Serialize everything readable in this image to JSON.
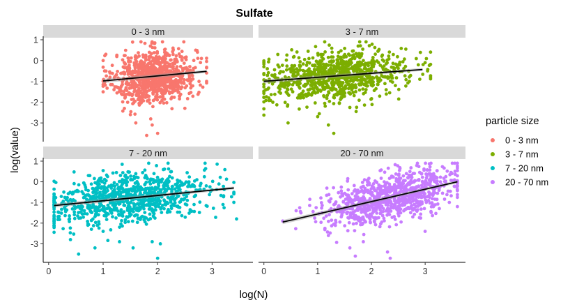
{
  "chart_data": {
    "type": "scatter",
    "title": "Sulfate",
    "xlabel": "log(N)",
    "ylabel": "log(value)",
    "xlim": [
      -0.1,
      3.75
    ],
    "ylim": [
      -3.9,
      1.1
    ],
    "x_ticks": [
      0,
      1,
      2,
      3
    ],
    "y_ticks": [
      -3,
      -2,
      -1,
      0,
      1
    ],
    "x_tick_labels": [
      "0",
      "1",
      "2",
      "3"
    ],
    "y_tick_labels": [
      "-3",
      "-2",
      "-1",
      "0",
      "1"
    ],
    "grid": false,
    "legend": {
      "title": "particle size",
      "placement": "right"
    },
    "panels": [
      {
        "name": "0 - 3 nm",
        "color": "#F8766D",
        "fit": {
          "x": [
            1.0,
            2.9
          ],
          "y": [
            -0.98,
            -0.52
          ]
        },
        "cloud": {
          "n": 900,
          "x_center": 1.95,
          "x_spread": 0.38,
          "y_intercept": -1.22,
          "slope": 0.24,
          "y_spread": 0.62,
          "x_range": [
            1.0,
            2.9
          ]
        },
        "sample_points": [
          [
            1.05,
            0.3
          ],
          [
            1.2,
            -1.4
          ],
          [
            1.4,
            -1.8
          ],
          [
            1.5,
            -2.6
          ],
          [
            1.6,
            -3.0
          ],
          [
            1.8,
            -3.6
          ],
          [
            1.9,
            -3.1
          ],
          [
            2.0,
            -3.5
          ],
          [
            2.5,
            -2.3
          ],
          [
            2.7,
            0.5
          ],
          [
            2.9,
            -1.0
          ]
        ]
      },
      {
        "name": "3 - 7 nm",
        "color": "#7CAE00",
        "fit": {
          "x": [
            0.0,
            2.95
          ],
          "y": [
            -1.0,
            -0.43
          ]
        },
        "cloud": {
          "n": 900,
          "x_center": 1.35,
          "x_spread": 0.65,
          "y_intercept": -1.0,
          "slope": 0.19,
          "y_spread": 0.58,
          "x_range": [
            0.0,
            3.1
          ]
        },
        "sample_points": [
          [
            0.0,
            -0.3
          ],
          [
            0.1,
            -0.9
          ],
          [
            0.45,
            -3.0
          ],
          [
            1.0,
            -2.7
          ],
          [
            1.3,
            -3.5
          ],
          [
            1.2,
            -3.1
          ],
          [
            1.9,
            -1.4
          ],
          [
            3.0,
            -0.1
          ],
          [
            2.9,
            -0.9
          ]
        ]
      },
      {
        "name": "7 - 20 nm",
        "color": "#00BFC4",
        "fit": {
          "x": [
            0.1,
            3.4
          ],
          "y": [
            -1.15,
            -0.3
          ]
        },
        "cloud": {
          "n": 900,
          "x_center": 1.45,
          "x_spread": 0.75,
          "y_intercept": -1.18,
          "slope": 0.26,
          "y_spread": 0.6,
          "x_range": [
            0.1,
            3.4
          ]
        },
        "sample_points": [
          [
            0.1,
            -1.0
          ],
          [
            0.4,
            -2.8
          ],
          [
            0.55,
            -3.5
          ],
          [
            0.85,
            -3.2
          ],
          [
            1.0,
            -2.4
          ],
          [
            1.3,
            -2.9
          ],
          [
            1.55,
            -3.2
          ],
          [
            1.9,
            -2.9
          ],
          [
            2.05,
            -3.0
          ],
          [
            2.0,
            -3.7
          ],
          [
            3.45,
            -1.8
          ],
          [
            3.2,
            -1.1
          ]
        ]
      },
      {
        "name": "20 - 70 nm",
        "color": "#C77CFF",
        "fit": {
          "x": [
            0.35,
            3.6
          ],
          "y": [
            -1.95,
            0.0
          ]
        },
        "cloud": {
          "n": 900,
          "x_center": 2.35,
          "x_spread": 0.6,
          "y_intercept": -2.1,
          "slope": 0.58,
          "y_spread": 0.55,
          "x_range": [
            0.35,
            3.6
          ]
        },
        "sample_points": [
          [
            0.35,
            -1.9
          ],
          [
            0.6,
            -1.4
          ],
          [
            1.2,
            -2.6
          ],
          [
            1.6,
            -3.2
          ],
          [
            1.7,
            -3.6
          ],
          [
            1.85,
            -2.9
          ],
          [
            2.3,
            -3.4
          ],
          [
            2.35,
            -3.7
          ],
          [
            3.0,
            -2.4
          ],
          [
            3.5,
            0.4
          ],
          [
            3.6,
            0.05
          ]
        ]
      }
    ]
  }
}
